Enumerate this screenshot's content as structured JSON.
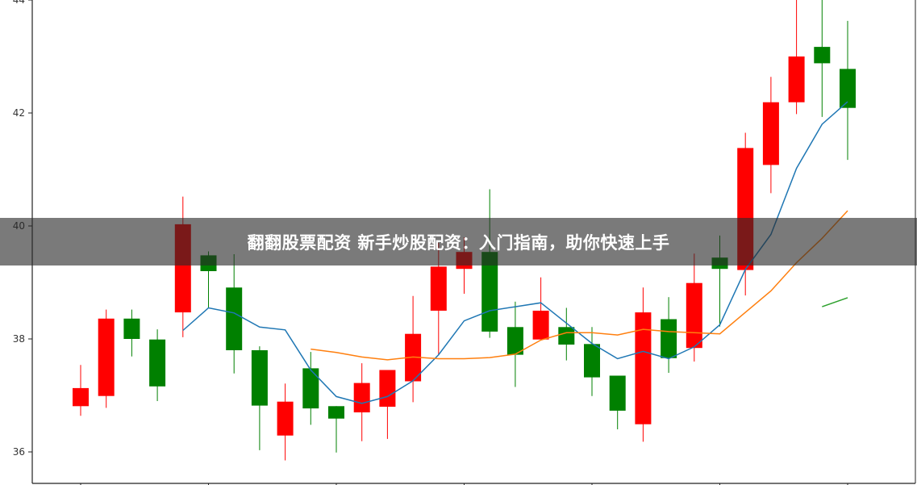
{
  "banner": {
    "title": "翻翻股票配资 新手炒股配资：入门指南，助你快速上手"
  },
  "chart_data": {
    "type": "candlestick",
    "title": "",
    "xlabel": "",
    "ylabel": "",
    "ylim": [
      35.4,
      44
    ],
    "yticks": [
      "36",
      "38",
      "40",
      "42",
      "44"
    ],
    "grid": false,
    "colors": {
      "up": "#ff0000",
      "down": "#008000",
      "ma_short": "#1f77b4",
      "ma_long": "#ff7f0e",
      "ma_extra": "#2ca02c"
    },
    "candles": [
      {
        "o": 36.81,
        "h": 37.54,
        "l": 36.64,
        "c": 37.13
      },
      {
        "o": 36.99,
        "h": 38.52,
        "l": 36.78,
        "c": 38.36
      },
      {
        "o": 38.36,
        "h": 38.52,
        "l": 37.69,
        "c": 38.0
      },
      {
        "o": 37.99,
        "h": 38.17,
        "l": 36.9,
        "c": 37.16
      },
      {
        "o": 38.47,
        "h": 40.52,
        "l": 38.03,
        "c": 40.03
      },
      {
        "o": 39.48,
        "h": 39.55,
        "l": 38.55,
        "c": 39.2
      },
      {
        "o": 38.91,
        "h": 39.5,
        "l": 37.39,
        "c": 37.8
      },
      {
        "o": 37.8,
        "h": 37.87,
        "l": 36.03,
        "c": 36.82
      },
      {
        "o": 36.29,
        "h": 37.21,
        "l": 35.85,
        "c": 36.89
      },
      {
        "o": 37.48,
        "h": 37.77,
        "l": 36.48,
        "c": 36.77
      },
      {
        "o": 36.81,
        "h": 36.81,
        "l": 35.99,
        "c": 36.59
      },
      {
        "o": 36.7,
        "h": 37.57,
        "l": 36.19,
        "c": 37.22
      },
      {
        "o": 36.8,
        "h": 37.45,
        "l": 36.23,
        "c": 37.45
      },
      {
        "o": 37.25,
        "h": 38.76,
        "l": 36.88,
        "c": 38.09
      },
      {
        "o": 38.5,
        "h": 39.7,
        "l": 37.71,
        "c": 39.28
      },
      {
        "o": 39.24,
        "h": 39.8,
        "l": 38.8,
        "c": 39.54
      },
      {
        "o": 39.54,
        "h": 40.65,
        "l": 38.02,
        "c": 38.13
      },
      {
        "o": 38.21,
        "h": 38.66,
        "l": 37.15,
        "c": 37.72
      },
      {
        "o": 37.99,
        "h": 39.09,
        "l": 37.99,
        "c": 38.5
      },
      {
        "o": 38.21,
        "h": 38.55,
        "l": 37.62,
        "c": 37.9
      },
      {
        "o": 37.91,
        "h": 38.21,
        "l": 36.99,
        "c": 37.32
      },
      {
        "o": 37.35,
        "h": 37.35,
        "l": 36.4,
        "c": 36.73
      },
      {
        "o": 36.49,
        "h": 38.91,
        "l": 36.18,
        "c": 38.47
      },
      {
        "o": 38.35,
        "h": 38.74,
        "l": 37.4,
        "c": 37.66
      },
      {
        "o": 37.84,
        "h": 39.51,
        "l": 37.6,
        "c": 38.99
      },
      {
        "o": 39.44,
        "h": 39.83,
        "l": 38.22,
        "c": 39.24
      },
      {
        "o": 39.22,
        "h": 41.65,
        "l": 38.77,
        "c": 41.38
      },
      {
        "o": 41.08,
        "h": 42.64,
        "l": 40.58,
        "c": 42.19
      },
      {
        "o": 42.19,
        "h": 44.1,
        "l": 41.98,
        "c": 43.0
      },
      {
        "o": 43.17,
        "h": 44.1,
        "l": 41.93,
        "c": 42.88
      },
      {
        "o": 42.78,
        "h": 43.63,
        "l": 41.17,
        "c": 42.09
      }
    ],
    "ma_short": {
      "start": 5,
      "values": [
        38.15,
        38.55,
        38.46,
        38.21,
        38.16,
        37.45,
        36.98,
        36.86,
        36.98,
        37.26,
        37.72,
        38.32,
        38.5,
        38.57,
        38.64,
        38.28,
        37.92,
        37.65,
        37.78,
        37.65,
        37.86,
        38.25,
        39.23,
        39.85,
        41.02,
        41.8,
        42.2
      ]
    },
    "ma_long": {
      "start": 10,
      "values": [
        37.82,
        37.76,
        37.68,
        37.63,
        37.68,
        37.65,
        37.65,
        37.67,
        37.73,
        37.98,
        38.11,
        38.11,
        38.07,
        38.17,
        38.13,
        38.11,
        38.09,
        38.47,
        38.85,
        39.35,
        39.78,
        40.27
      ]
    },
    "ma_extra": {
      "start": 30,
      "values": [
        38.57,
        38.73
      ]
    }
  }
}
